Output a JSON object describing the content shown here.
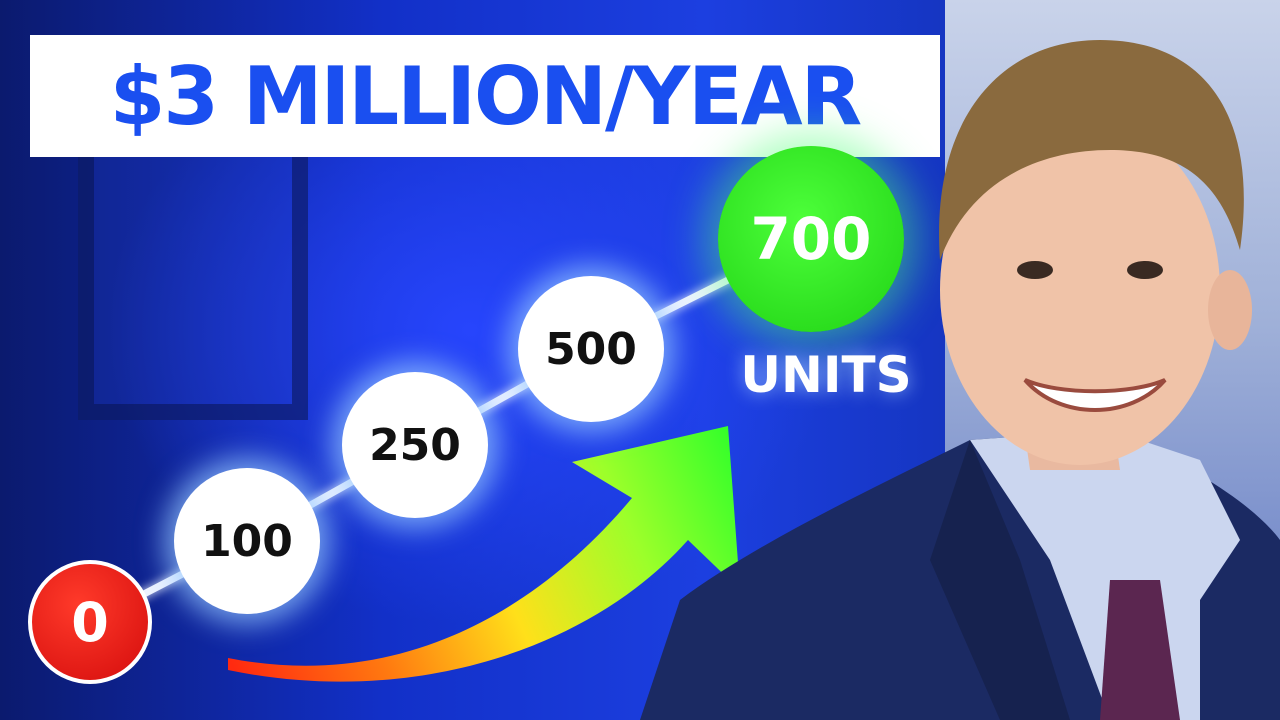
{
  "headline": "$3 MILLION/YEAR",
  "milestones": [
    "0",
    "100",
    "250",
    "500",
    "700"
  ],
  "units_label": "UNITS",
  "colors": {
    "title_text": "#1a4ff0",
    "start_circle": "#e11414",
    "goal_circle": "#2fe11f",
    "milestone_circle": "#ffffff",
    "background": "#1c3fe0"
  },
  "icons": [
    "growth-arrow-icon"
  ]
}
